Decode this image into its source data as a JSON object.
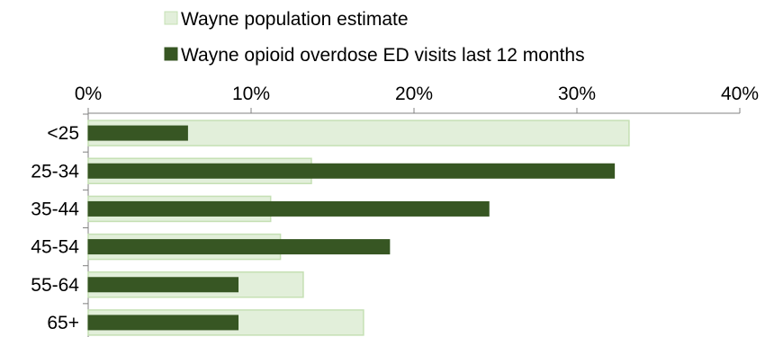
{
  "chart_data": {
    "type": "bar",
    "orientation": "horizontal",
    "categories": [
      "<25",
      "25-34",
      "35-44",
      "45-54",
      "55-64",
      "65+"
    ],
    "series": [
      {
        "name": "Wayne population estimate",
        "values": [
          33.2,
          13.7,
          11.2,
          11.8,
          13.2,
          16.9
        ],
        "color": "#e2efda",
        "stroke": "#c5e0b4"
      },
      {
        "name": "Wayne opioid overdose ED visits last 12 months",
        "values": [
          6.1,
          32.3,
          24.6,
          18.5,
          9.2,
          9.2
        ],
        "color": "#375623",
        "stroke": "#375623"
      }
    ],
    "xaxis": {
      "ticks": [
        0,
        10,
        20,
        30,
        40
      ],
      "tick_labels": [
        "0%",
        "10%",
        "20%",
        "30%",
        "40%"
      ],
      "range": [
        0,
        40
      ],
      "position": "top"
    },
    "legend": {
      "placement": "top"
    },
    "grid": false
  }
}
